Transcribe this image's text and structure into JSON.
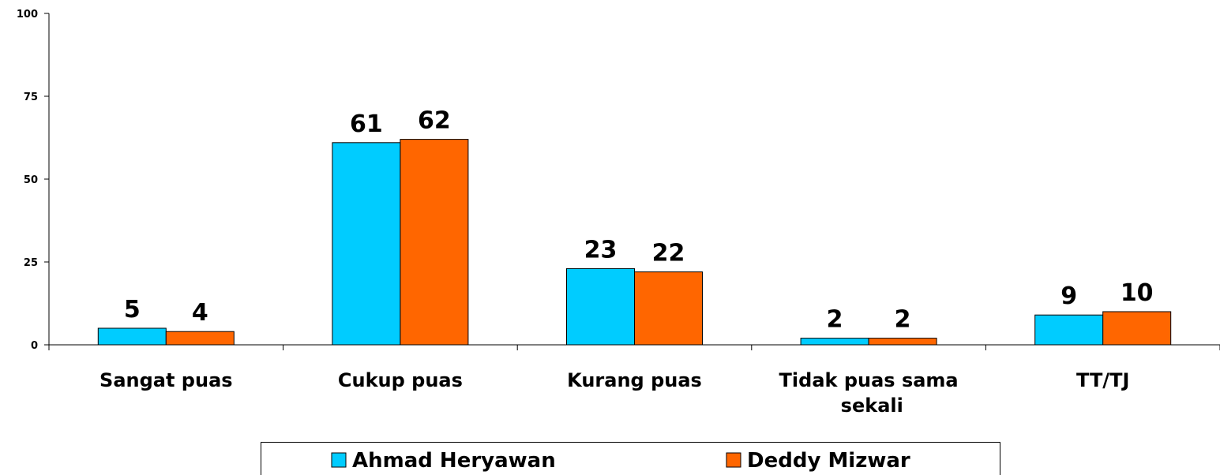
{
  "chart_data": {
    "type": "bar",
    "categories": [
      "Sangat puas",
      "Cukup puas",
      "Kurang puas",
      "Tidak puas sama sekali",
      "TT/TJ"
    ],
    "series": [
      {
        "name": "Ahmad Heryawan",
        "color": "#00ccff",
        "values": [
          5,
          61,
          23,
          2,
          9
        ]
      },
      {
        "name": "Deddy Mizwar",
        "color": "#ff6600",
        "values": [
          4,
          62,
          22,
          2,
          10
        ]
      }
    ],
    "ylim": [
      0,
      100
    ],
    "yticks": [
      0,
      25,
      50,
      75,
      100
    ],
    "grid": false,
    "legend": "bottom"
  }
}
